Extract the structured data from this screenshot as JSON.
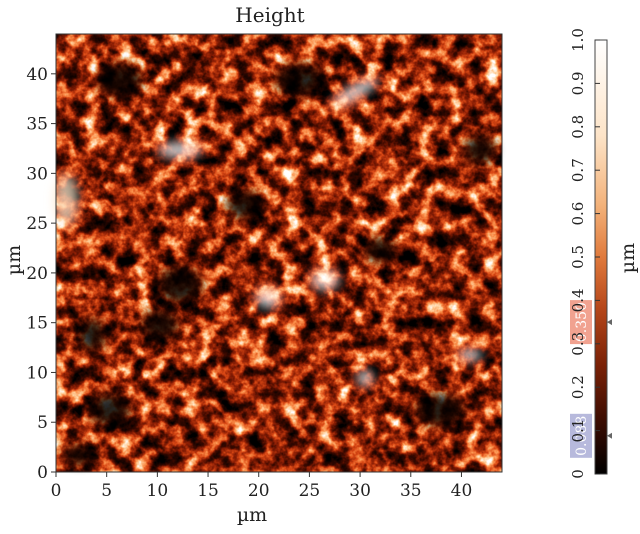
{
  "chart_data": {
    "type": "heatmap",
    "title": "Height",
    "xlabel": "µm",
    "ylabel": "µm",
    "xlim": [
      0,
      44
    ],
    "ylim": [
      0,
      44
    ],
    "xticks": [
      "0",
      "5",
      "10",
      "15",
      "20",
      "25",
      "30",
      "35",
      "40"
    ],
    "yticks": [
      "0",
      "5",
      "10",
      "15",
      "20",
      "25",
      "30",
      "35",
      "40"
    ],
    "colorbar": {
      "label": "µm",
      "range": [
        0,
        1.0
      ],
      "ticks": [
        "0",
        "0.1",
        "0.2",
        "0.3",
        "0.4",
        "0.5",
        "0.6",
        "0.7",
        "0.8",
        "0.9",
        "1.0"
      ],
      "markers": [
        {
          "value": 0.088,
          "label": "0.088",
          "color": "#b7b9dc"
        },
        {
          "value": 0.35,
          "label": "0.350",
          "color": "#f1a290"
        }
      ],
      "colormap": [
        "#000000",
        "#3a0c02",
        "#7a2106",
        "#b5461a",
        "#e07a3c",
        "#f3b27a",
        "#fde4c8",
        "#ffffff"
      ]
    },
    "grid": false
  }
}
